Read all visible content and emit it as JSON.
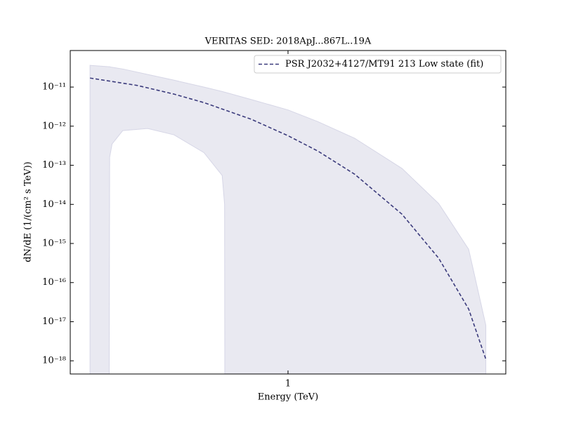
{
  "chart_data": {
    "type": "line",
    "title": "VERITAS SED: 2018ApJ...867L..19A",
    "xlabel": "Energy (TeV)",
    "ylabel": "dN/dE (1/(cm² s TeV))",
    "xscale": "log",
    "yscale": "log",
    "xlim": [
      0.266,
      3.76
    ],
    "ylim": [
      4.6e-19,
      8.6e-11
    ],
    "xticks": [
      1
    ],
    "yticks": [
      {
        "value": 1e-18,
        "label": "10⁻¹⁸"
      },
      {
        "value": 1e-17,
        "label": "10⁻¹⁷"
      },
      {
        "value": 1e-16,
        "label": "10⁻¹⁶"
      },
      {
        "value": 1e-15,
        "label": "10⁻¹⁵"
      },
      {
        "value": 1e-14,
        "label": "10⁻¹⁴"
      },
      {
        "value": 1e-13,
        "label": "10⁻¹³"
      },
      {
        "value": 1e-12,
        "label": "10⁻¹²"
      },
      {
        "value": 1e-11,
        "label": "10⁻¹¹"
      }
    ],
    "legend": "upper right",
    "series": [
      {
        "name": "PSR J2032+4127/MT91 213 Low state (fit)",
        "color": "#3b3b7c",
        "linestyle": "dashed",
        "x": [
          0.3,
          0.4,
          0.5,
          0.6,
          0.8,
          1,
          1.2,
          1.5,
          2,
          2.5,
          3,
          3.33
        ],
        "values": [
          1.7e-11,
          1.1e-11,
          6.6e-12,
          4e-12,
          1.5e-12,
          5.7e-13,
          2.3e-13,
          5.9e-14,
          5.6e-15,
          4.2e-16,
          2.1e-17,
          1.1e-18
        ]
      }
    ],
    "band": {
      "color": "#e9e9f1",
      "edge": "#d6d6e6",
      "x": [
        0.3,
        0.337,
        0.338,
        0.343,
        0.366,
        0.426,
        0.5,
        0.6,
        0.67,
        0.68,
        0.681,
        0.8,
        1,
        1.2,
        1.5,
        2,
        2.5,
        3,
        3.33
      ],
      "upper": [
        3.6e-11,
        3.3e-11,
        3.3e-11,
        3.2e-11,
        2.9e-11,
        2.1e-11,
        1.5e-11,
        1e-11,
        7.7e-12,
        7.4e-12,
        7.4e-12,
        4.8e-12,
        2.6e-12,
        1.3e-12,
        4.9e-13,
        8.3e-14,
        1.05e-14,
        7.1e-16,
        8.1e-18
      ],
      "lower": [
        1e-19,
        1e-19,
        1.6e-13,
        3.5e-13,
        7.7e-13,
        8.7e-13,
        6e-13,
        2.1e-13,
        5.5e-14,
        1e-14,
        1e-19,
        1e-19,
        1e-19,
        1e-19,
        1e-19,
        1e-19,
        1e-19,
        1e-19,
        1e-19
      ]
    }
  }
}
